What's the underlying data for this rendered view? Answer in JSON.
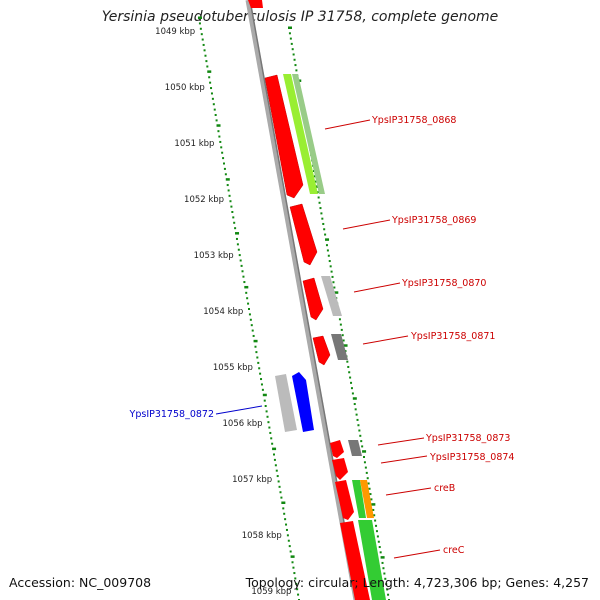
{
  "title": "Yersinia pseudotuberculosis IP 31758, complete genome",
  "accession": "Accession: NC_009708",
  "topology": "Topology: circular; Length: 4,723,306 bp; Genes: 4,257",
  "scale_labels": [
    "1049 kbp",
    "1050 kbp",
    "1051 kbp",
    "1052 kbp",
    "1053 kbp",
    "1054 kbp",
    "1055 kbp",
    "1056 kbp",
    "1057 kbp",
    "1058 kbp",
    "1059 kbp"
  ],
  "genes": [
    {
      "label": "YpsIP31758_0868",
      "color": "#cc0000"
    },
    {
      "label": "YpsIP31758_0869",
      "color": "#cc0000"
    },
    {
      "label": "YpsIP31758_0870",
      "color": "#cc0000"
    },
    {
      "label": "YpsIP31758_0871",
      "color": "#cc0000"
    },
    {
      "label": "YpsIP31758_0872",
      "color": "#0000cc"
    },
    {
      "label": "YpsIP31758_0873",
      "color": "#cc0000"
    },
    {
      "label": "YpsIP31758_0874",
      "color": "#cc0000"
    },
    {
      "label": "creB",
      "color": "#cc0000"
    },
    {
      "label": "creC",
      "color": "#cc0000"
    }
  ],
  "colors": {
    "cds": "#ff0000",
    "cds_reverse": "#0000ff",
    "hit_green": "#33cc33",
    "hit_light_green": "#99ee33",
    "hit_grey": "#bbbbbb",
    "hit_dark": "#777777",
    "hit_orange": "#ff9900",
    "ticks": "#118811",
    "backbone": "#999999"
  }
}
